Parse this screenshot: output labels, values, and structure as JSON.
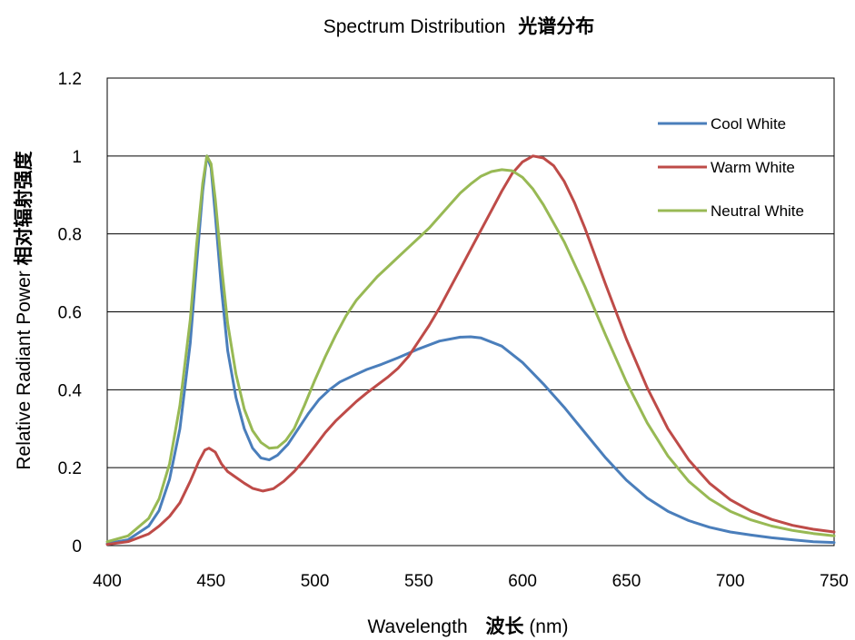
{
  "chart_data": {
    "type": "line",
    "title": "Spectrum Distribution",
    "title_cn": "光谱分布",
    "xlabel": "Wavelength",
    "xlabel_cn": "波长",
    "xlabel_unit": "(nm)",
    "ylabel": "Relative Radiant Power",
    "ylabel_cn": "相对辐射强度",
    "xlim": [
      400,
      750
    ],
    "ylim": [
      0,
      1.2
    ],
    "x_ticks": [
      "400",
      "450",
      "500",
      "550",
      "600",
      "650",
      "700",
      "750"
    ],
    "y_ticks": [
      "0",
      "0.2",
      "0.4",
      "0.6",
      "0.8",
      "1",
      "1.2"
    ],
    "grid": "horizontal",
    "legend_position": "top-right",
    "series": [
      {
        "name": "Cool White",
        "color": "#4a7ebb",
        "points": [
          [
            400,
            0.005
          ],
          [
            410,
            0.015
          ],
          [
            420,
            0.05
          ],
          [
            425,
            0.09
          ],
          [
            430,
            0.17
          ],
          [
            435,
            0.3
          ],
          [
            440,
            0.52
          ],
          [
            443,
            0.72
          ],
          [
            446,
            0.91
          ],
          [
            448,
            1.0
          ],
          [
            450,
            0.97
          ],
          [
            452,
            0.85
          ],
          [
            455,
            0.66
          ],
          [
            458,
            0.5
          ],
          [
            462,
            0.38
          ],
          [
            466,
            0.3
          ],
          [
            470,
            0.25
          ],
          [
            474,
            0.225
          ],
          [
            478,
            0.22
          ],
          [
            482,
            0.232
          ],
          [
            487,
            0.26
          ],
          [
            492,
            0.3
          ],
          [
            497,
            0.34
          ],
          [
            502,
            0.375
          ],
          [
            507,
            0.4
          ],
          [
            512,
            0.42
          ],
          [
            518,
            0.435
          ],
          [
            525,
            0.452
          ],
          [
            532,
            0.465
          ],
          [
            540,
            0.482
          ],
          [
            550,
            0.505
          ],
          [
            560,
            0.525
          ],
          [
            570,
            0.535
          ],
          [
            575,
            0.536
          ],
          [
            580,
            0.533
          ],
          [
            590,
            0.512
          ],
          [
            600,
            0.47
          ],
          [
            610,
            0.415
          ],
          [
            620,
            0.355
          ],
          [
            630,
            0.29
          ],
          [
            640,
            0.225
          ],
          [
            650,
            0.168
          ],
          [
            660,
            0.122
          ],
          [
            670,
            0.088
          ],
          [
            680,
            0.064
          ],
          [
            690,
            0.047
          ],
          [
            700,
            0.035
          ],
          [
            710,
            0.027
          ],
          [
            720,
            0.02
          ],
          [
            730,
            0.015
          ],
          [
            740,
            0.01
          ],
          [
            750,
            0.008
          ]
        ]
      },
      {
        "name": "Warm White",
        "color": "#be4b48",
        "points": [
          [
            400,
            0.003
          ],
          [
            410,
            0.01
          ],
          [
            420,
            0.03
          ],
          [
            425,
            0.05
          ],
          [
            430,
            0.075
          ],
          [
            435,
            0.11
          ],
          [
            440,
            0.165
          ],
          [
            444,
            0.215
          ],
          [
            447,
            0.245
          ],
          [
            449,
            0.25
          ],
          [
            452,
            0.24
          ],
          [
            455,
            0.21
          ],
          [
            458,
            0.19
          ],
          [
            462,
            0.175
          ],
          [
            466,
            0.16
          ],
          [
            470,
            0.147
          ],
          [
            475,
            0.14
          ],
          [
            480,
            0.146
          ],
          [
            485,
            0.165
          ],
          [
            490,
            0.19
          ],
          [
            495,
            0.22
          ],
          [
            500,
            0.255
          ],
          [
            505,
            0.29
          ],
          [
            510,
            0.32
          ],
          [
            515,
            0.345
          ],
          [
            520,
            0.37
          ],
          [
            525,
            0.392
          ],
          [
            530,
            0.412
          ],
          [
            535,
            0.432
          ],
          [
            540,
            0.455
          ],
          [
            545,
            0.485
          ],
          [
            550,
            0.525
          ],
          [
            555,
            0.565
          ],
          [
            560,
            0.61
          ],
          [
            565,
            0.66
          ],
          [
            570,
            0.71
          ],
          [
            575,
            0.76
          ],
          [
            580,
            0.81
          ],
          [
            585,
            0.86
          ],
          [
            590,
            0.91
          ],
          [
            595,
            0.955
          ],
          [
            600,
            0.985
          ],
          [
            605,
            1.0
          ],
          [
            610,
            0.995
          ],
          [
            615,
            0.975
          ],
          [
            620,
            0.935
          ],
          [
            625,
            0.88
          ],
          [
            630,
            0.815
          ],
          [
            640,
            0.67
          ],
          [
            650,
            0.53
          ],
          [
            660,
            0.405
          ],
          [
            670,
            0.3
          ],
          [
            680,
            0.22
          ],
          [
            690,
            0.16
          ],
          [
            700,
            0.118
          ],
          [
            710,
            0.088
          ],
          [
            720,
            0.067
          ],
          [
            730,
            0.052
          ],
          [
            740,
            0.042
          ],
          [
            750,
            0.035
          ]
        ]
      },
      {
        "name": "Neutral White",
        "color": "#98b954",
        "points": [
          [
            400,
            0.01
          ],
          [
            410,
            0.025
          ],
          [
            420,
            0.07
          ],
          [
            425,
            0.12
          ],
          [
            430,
            0.21
          ],
          [
            435,
            0.36
          ],
          [
            440,
            0.58
          ],
          [
            443,
            0.77
          ],
          [
            446,
            0.93
          ],
          [
            448,
            1.0
          ],
          [
            450,
            0.98
          ],
          [
            452,
            0.89
          ],
          [
            455,
            0.72
          ],
          [
            458,
            0.57
          ],
          [
            462,
            0.44
          ],
          [
            466,
            0.35
          ],
          [
            470,
            0.295
          ],
          [
            474,
            0.265
          ],
          [
            478,
            0.25
          ],
          [
            482,
            0.252
          ],
          [
            486,
            0.27
          ],
          [
            490,
            0.3
          ],
          [
            495,
            0.36
          ],
          [
            500,
            0.425
          ],
          [
            505,
            0.485
          ],
          [
            510,
            0.54
          ],
          [
            515,
            0.59
          ],
          [
            520,
            0.63
          ],
          [
            525,
            0.66
          ],
          [
            530,
            0.69
          ],
          [
            535,
            0.715
          ],
          [
            540,
            0.74
          ],
          [
            545,
            0.765
          ],
          [
            550,
            0.79
          ],
          [
            555,
            0.815
          ],
          [
            560,
            0.845
          ],
          [
            565,
            0.875
          ],
          [
            570,
            0.905
          ],
          [
            575,
            0.928
          ],
          [
            580,
            0.948
          ],
          [
            585,
            0.96
          ],
          [
            590,
            0.965
          ],
          [
            595,
            0.962
          ],
          [
            600,
            0.945
          ],
          [
            605,
            0.915
          ],
          [
            610,
            0.875
          ],
          [
            620,
            0.78
          ],
          [
            630,
            0.665
          ],
          [
            640,
            0.54
          ],
          [
            650,
            0.42
          ],
          [
            660,
            0.315
          ],
          [
            670,
            0.23
          ],
          [
            680,
            0.165
          ],
          [
            690,
            0.12
          ],
          [
            700,
            0.088
          ],
          [
            710,
            0.066
          ],
          [
            720,
            0.05
          ],
          [
            730,
            0.039
          ],
          [
            740,
            0.031
          ],
          [
            750,
            0.025
          ]
        ]
      }
    ]
  }
}
